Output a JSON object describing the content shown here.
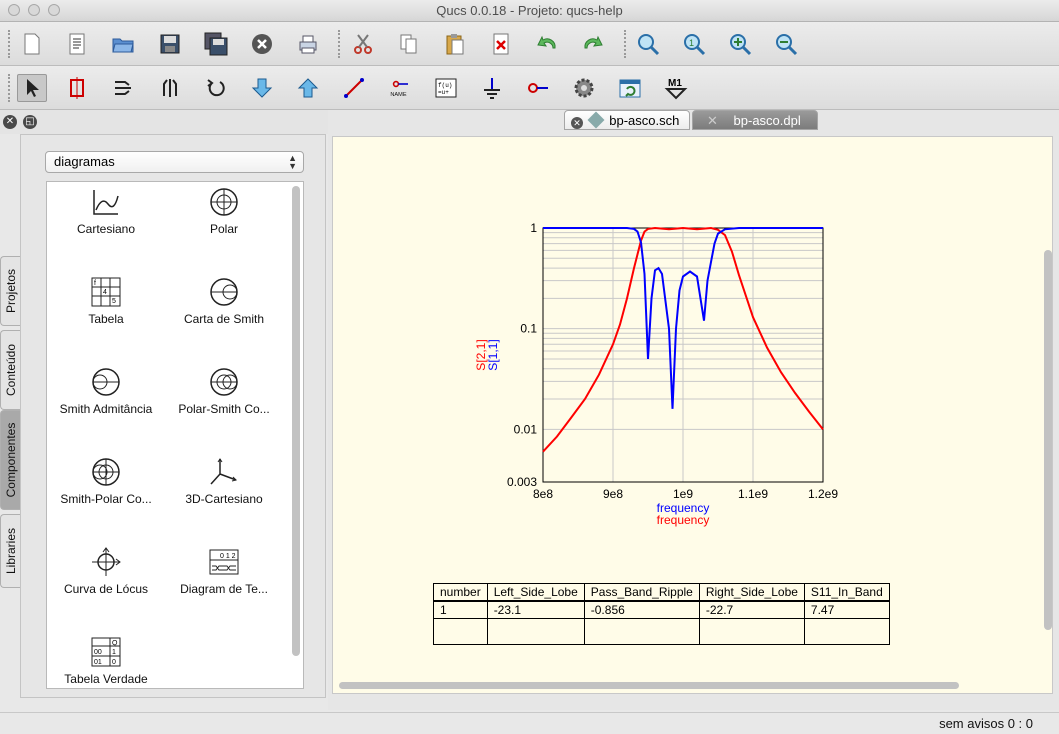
{
  "window": {
    "title": "Qucs 0.0.18 - Projeto: qucs-help"
  },
  "toolbar1": [
    "new-file-icon",
    "text-doc-icon",
    "open-folder-icon",
    "save-icon",
    "save-all-icon",
    "close-doc-icon",
    "print-icon",
    "cut-icon",
    "copy-icon",
    "paste-icon",
    "delete-icon",
    "undo-icon",
    "redo-icon",
    "zoom-fit-icon",
    "zoom-1-icon",
    "zoom-in-icon",
    "zoom-out-icon"
  ],
  "toolbar2": [
    "select-icon",
    "insert-component-icon",
    "mirror-x-icon",
    "mirror-y-icon",
    "rotate-icon",
    "go-down-icon",
    "go-up-icon",
    "wire-icon",
    "label-icon",
    "equation-icon",
    "ground-icon",
    "port-icon",
    "simulate-icon",
    "view-data-icon",
    "marker-icon"
  ],
  "toolbar2_labels": {
    "label": "NAME",
    "equation": "f(u)\n=u+",
    "marker": "M1"
  },
  "left_panel": {
    "dropdown": "diagramas",
    "items": [
      "Cartesiano",
      "Polar",
      "Tabela",
      "Carta de Smith",
      "Smith Admitância",
      "Polar-Smith Co...",
      "Smith-Polar Co...",
      "3D-Cartesiano",
      "Curva de Lócus",
      "Diagram de Te...",
      "Tabela Verdade"
    ],
    "vtabs": [
      "Projetos",
      "Conteúdo",
      "Componentes",
      "Libraries"
    ]
  },
  "tabs": [
    {
      "label": "bp-asco.sch",
      "active": false
    },
    {
      "label": "bp-asco.dpl",
      "active": true
    }
  ],
  "chart_data": {
    "type": "line",
    "xlabel": [
      "frequency",
      "frequency"
    ],
    "ylabel": [
      "S[2,1]",
      "S[1,1]"
    ],
    "xticks": [
      "8e8",
      "9e8",
      "1e9",
      "1.1e9",
      "1.2e9"
    ],
    "yticks": [
      "1",
      "0.1",
      "0.01",
      "0.003"
    ],
    "xlim": [
      800000000,
      1200000000
    ],
    "ylim": [
      0.003,
      1
    ],
    "yscale": "log",
    "grid": true,
    "series": [
      {
        "name": "S[2,1]",
        "color": "#ff0000",
        "x": [
          800000000,
          820000000,
          840000000,
          860000000,
          880000000,
          900000000,
          910000000,
          920000000,
          930000000,
          940000000,
          945000000,
          950000000,
          960000000,
          980000000,
          1000000000,
          1020000000,
          1040000000,
          1050000000,
          1060000000,
          1070000000,
          1080000000,
          1090000000,
          1100000000,
          1120000000,
          1140000000,
          1160000000,
          1180000000,
          1200000000
        ],
        "y": [
          0.006,
          0.0085,
          0.013,
          0.02,
          0.035,
          0.07,
          0.11,
          0.2,
          0.4,
          0.75,
          0.92,
          0.98,
          1,
          0.97,
          1,
          0.97,
          1,
          0.96,
          0.85,
          0.58,
          0.34,
          0.21,
          0.13,
          0.065,
          0.037,
          0.023,
          0.015,
          0.01
        ]
      },
      {
        "name": "S[1,1]",
        "color": "#0000ff",
        "x": [
          800000000,
          900000000,
          920000000,
          930000000,
          935000000,
          940000000,
          945000000,
          950000000,
          955000000,
          960000000,
          965000000,
          970000000,
          980000000,
          985000000,
          990000000,
          995000000,
          1000000000,
          1010000000,
          1020000000,
          1030000000,
          1035000000,
          1040000000,
          1045000000,
          1050000000,
          1060000000,
          1080000000,
          1200000000
        ],
        "y": [
          1,
          1,
          1,
          0.98,
          0.92,
          0.72,
          0.35,
          0.05,
          0.2,
          0.38,
          0.4,
          0.35,
          0.1,
          0.016,
          0.1,
          0.24,
          0.33,
          0.37,
          0.33,
          0.12,
          0.3,
          0.46,
          0.7,
          0.88,
          0.97,
          1,
          1
        ]
      }
    ]
  },
  "result_table": {
    "headers": [
      "number",
      "Left_Side_Lobe",
      "Pass_Band_Ripple",
      "Right_Side_Lobe",
      "S11_In_Band"
    ],
    "rows": [
      [
        "1",
        "-23.1",
        "-0.856",
        "-22.7",
        "7.47"
      ],
      [
        "",
        "",
        "",
        "",
        ""
      ]
    ]
  },
  "status": {
    "text": "sem avisos  0 : 0"
  }
}
